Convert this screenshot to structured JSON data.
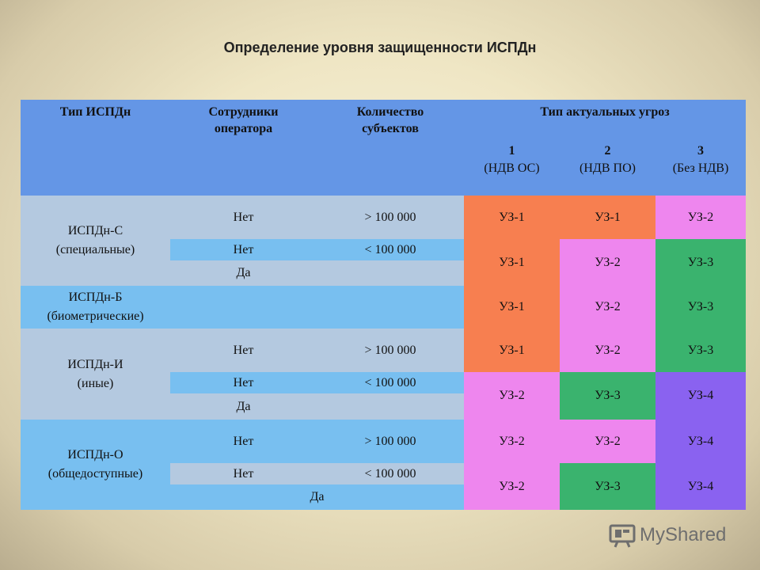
{
  "title": "Определение уровня защищенности ИСПДн",
  "header": {
    "type": "Тип ИСПДн",
    "staff": "Сотрудники оператора",
    "count": "Количество субъектов",
    "threats": "Тип актуальных угроз",
    "t1_num": "1",
    "t1_label": "(НДВ ОС)",
    "t2_num": "2",
    "t2_label": "(НДВ ПО)",
    "t3_num": "3",
    "t3_label": "(Без НДВ)"
  },
  "groups": {
    "s": {
      "line1": "ИСПДн-С",
      "line2": "(специальные)"
    },
    "b": {
      "line1": "ИСПДн-Б",
      "line2": "(биометрические)"
    },
    "i": {
      "line1": "ИСПДн-И",
      "line2": "(иные)"
    },
    "o": {
      "line1": "ИСПДн-О",
      "line2": "(общедоступные)"
    }
  },
  "cells": {
    "s1_staff": "Нет",
    "s1_count": "> 100 000",
    "s1_t1": "УЗ-1",
    "s1_t2": "УЗ-1",
    "s1_t3": "УЗ-2",
    "s2_staff": "Нет",
    "s2_count": "< 100 000",
    "s3_staff": "Да",
    "s23_t1": "УЗ-1",
    "s23_t2": "УЗ-2",
    "s23_t3": "УЗ-3",
    "b_t1": "УЗ-1",
    "b_t2": "УЗ-2",
    "b_t3": "УЗ-3",
    "i1_staff": "Нет",
    "i1_count": "> 100 000",
    "i1_t1": "УЗ-1",
    "i1_t2": "УЗ-2",
    "i1_t3": "УЗ-3",
    "i2_staff": "Нет",
    "i2_count": "< 100 000",
    "i3_staff": "Да",
    "i23_t1": "УЗ-2",
    "i23_t2": "УЗ-3",
    "i23_t3": "УЗ-4",
    "o1_staff": "Нет",
    "o1_count": "> 100 000",
    "o1_t1": "УЗ-2",
    "o1_t2": "УЗ-2",
    "o1_t3": "УЗ-4",
    "o2_staff": "Нет",
    "o2_count": "< 100 000",
    "o3_staff": "Да",
    "o23_t1": "УЗ-2",
    "o23_t2": "УЗ-3",
    "o23_t3": "УЗ-4"
  },
  "watermark": {
    "text": "MyShared"
  },
  "colors": {
    "header": "#6496e6",
    "gray_row": "#b4c9e0",
    "blue_row": "#78bff0",
    "uz_orange": "#f77f50",
    "uz_pink": "#ee86ee",
    "uz_green": "#3ab36e",
    "uz_purple": "#8a62f0"
  }
}
